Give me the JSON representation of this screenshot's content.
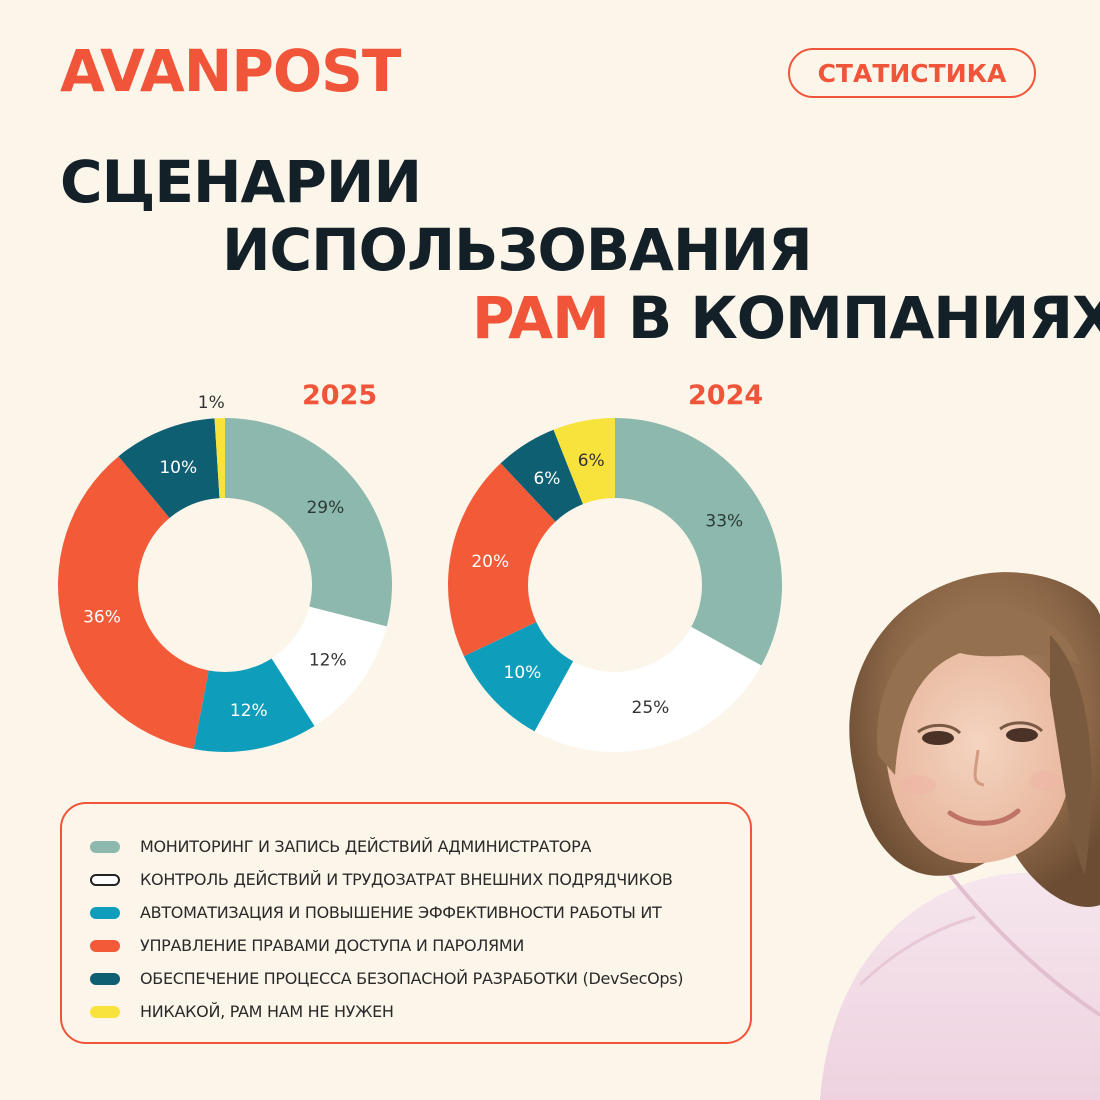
{
  "header": {
    "logo": "AVANPOST",
    "badge": "СТАТИСТИКА"
  },
  "title": {
    "line1": "СЦЕНАРИИ",
    "line2": "ИСПОЛЬЗОВАНИЯ",
    "line3_accent": "PAM",
    "line3_rest": " В КОМПАНИЯХ"
  },
  "colors": {
    "accent": "#f0553a",
    "monitoring": "#8db8ad",
    "contractors": "#ffffff",
    "automation": "#0e9ebc",
    "access": "#f25a38",
    "devsecops": "#0f5f73",
    "none": "#f8e33c"
  },
  "legend": {
    "items": [
      {
        "label": "МОНИТОРИНГ И ЗАПИСЬ ДЕЙСТВИЙ АДМИНИСТРАТОРА",
        "color": "#8db8ad"
      },
      {
        "label": "КОНТРОЛЬ ДЕЙСТВИЙ И ТРУДОЗАТРАТ ВНЕШНИХ ПОДРЯДЧИКОВ",
        "color": "#ffffff"
      },
      {
        "label": "АВТОМАТИЗАЦИЯ И ПОВЫШЕНИЕ ЭФФЕКТИВНОСТИ РАБОТЫ ИТ",
        "color": "#0e9ebc"
      },
      {
        "label": "УПРАВЛЕНИЕ ПРАВАМИ ДОСТУПА И ПАРОЛЯМИ",
        "color": "#f25a38"
      },
      {
        "label": "ОБЕСПЕЧЕНИЕ ПРОЦЕССА БЕЗОПАСНОЙ РАЗРАБОТКИ (DevSecOps)",
        "color": "#0f5f73"
      },
      {
        "label": "НИКАКОЙ, PAM НАМ НЕ НУЖЕН",
        "color": "#f8e33c"
      }
    ]
  },
  "chart_data": [
    {
      "type": "pie",
      "title": "2025",
      "categories": [
        "МОНИТОРИНГ И ЗАПИСЬ ДЕЙСТВИЙ АДМИНИСТРАТОРА",
        "КОНТРОЛЬ ДЕЙСТВИЙ И ТРУДОЗАТРАТ ВНЕШНИХ ПОДРЯДЧИКОВ",
        "АВТОМАТИЗАЦИЯ И ПОВЫШЕНИЕ ЭФФЕКТИВНОСТИ РАБОТЫ ИТ",
        "УПРАВЛЕНИЕ ПРАВАМИ ДОСТУПА И ПАРОЛЯМИ",
        "ОБЕСПЕЧЕНИЕ ПРОЦЕССА БЕЗОПАСНОЙ РАЗРАБОТКИ (DevSecOps)",
        "НИКАКОЙ, PAM НАМ НЕ НУЖЕН"
      ],
      "values": [
        29,
        12,
        12,
        36,
        10,
        1
      ],
      "labels": [
        "29%",
        "12%",
        "12%",
        "36%",
        "10%",
        "1%"
      ],
      "colors": [
        "#8db8ad",
        "#ffffff",
        "#0e9ebc",
        "#f25a38",
        "#0f5f73",
        "#f8e33c"
      ]
    },
    {
      "type": "pie",
      "title": "2024",
      "categories": [
        "МОНИТОРИНГ И ЗАПИСЬ ДЕЙСТВИЙ АДМИНИСТРАТОРА",
        "КОНТРОЛЬ ДЕЙСТВИЙ И ТРУДОЗАТРАТ ВНЕШНИХ ПОДРЯДЧИКОВ",
        "АВТОМАТИЗАЦИЯ И ПОВЫШЕНИЕ ЭФФЕКТИВНОСТИ РАБОТЫ ИТ",
        "УПРАВЛЕНИЕ ПРАВАМИ ДОСТУПА И ПАРОЛЯМИ",
        "ОБЕСПЕЧЕНИЕ ПРОЦЕССА БЕЗОПАСНОЙ РАЗРАБОТКИ (DevSecOps)",
        "НИКАКОЙ, PAM НАМ НЕ НУЖЕН"
      ],
      "values": [
        33,
        25,
        10,
        20,
        6,
        6
      ],
      "labels": [
        "33%",
        "25%",
        "10%",
        "20%",
        "6%",
        "6%"
      ],
      "colors": [
        "#8db8ad",
        "#ffffff",
        "#0e9ebc",
        "#f25a38",
        "#0f5f73",
        "#f8e33c"
      ]
    }
  ]
}
